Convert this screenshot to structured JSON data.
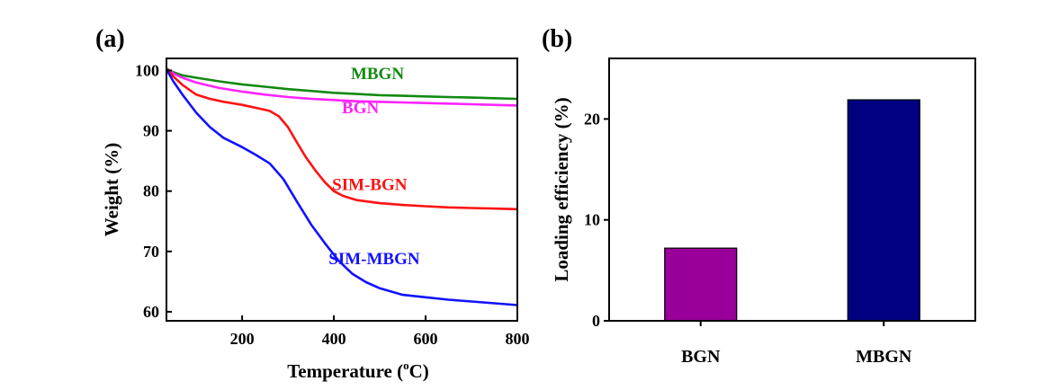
{
  "chart_data": [
    {
      "type": "line",
      "panel_label": "(a)",
      "title": "",
      "xlabel": "Temperature (",
      "xlabel_sup": "o",
      "xlabel_tail": "C)",
      "ylabel": "Weight (%)",
      "xlim": [
        35,
        800
      ],
      "ylim": [
        58.5,
        102
      ],
      "xticks": [
        200,
        400,
        600,
        800
      ],
      "yticks": [
        60,
        70,
        80,
        90,
        100
      ],
      "grid": false,
      "series": [
        {
          "name": "MBGN",
          "color": "#118a11",
          "label_at": [
            495,
            98.6
          ],
          "x": [
            35,
            50,
            70,
            100,
            150,
            200,
            250,
            300,
            350,
            400,
            450,
            500,
            550,
            600,
            650,
            700,
            750,
            800
          ],
          "y": [
            100.3,
            99.7,
            99.2,
            98.8,
            98.2,
            97.7,
            97.3,
            96.9,
            96.6,
            96.3,
            96.1,
            95.9,
            95.8,
            95.7,
            95.6,
            95.5,
            95.4,
            95.3
          ]
        },
        {
          "name": "BGN",
          "color": "#ff22ff",
          "label_at": [
            458,
            92.9
          ],
          "x": [
            35,
            50,
            70,
            100,
            150,
            200,
            250,
            300,
            350,
            400,
            450,
            500,
            550,
            600,
            650,
            700,
            750,
            800
          ],
          "y": [
            100.3,
            99.5,
            98.8,
            98.0,
            97.1,
            96.5,
            96.0,
            95.6,
            95.3,
            95.1,
            94.9,
            94.8,
            94.7,
            94.6,
            94.5,
            94.4,
            94.3,
            94.2
          ]
        },
        {
          "name": "SIM-BGN",
          "color": "#ff1111",
          "label_at": [
            478,
            80.2
          ],
          "x": [
            35,
            50,
            70,
            100,
            130,
            160,
            200,
            230,
            260,
            280,
            300,
            320,
            340,
            360,
            380,
            400,
            420,
            450,
            500,
            550,
            600,
            650,
            700,
            750,
            800
          ],
          "y": [
            100.3,
            99.0,
            97.6,
            96.0,
            95.3,
            94.8,
            94.3,
            93.8,
            93.3,
            92.4,
            90.6,
            88.0,
            85.5,
            83.4,
            81.5,
            80.0,
            79.2,
            78.5,
            78.0,
            77.7,
            77.5,
            77.3,
            77.2,
            77.1,
            77.0
          ]
        },
        {
          "name": "SIM-MBGN",
          "color": "#1111ff",
          "label_at": [
            488,
            67.9
          ],
          "x": [
            35,
            50,
            70,
            100,
            130,
            160,
            200,
            230,
            260,
            290,
            320,
            350,
            380,
            410,
            440,
            470,
            500,
            550,
            600,
            650,
            700,
            750,
            800
          ],
          "y": [
            100.2,
            98.2,
            96.0,
            93.0,
            90.6,
            88.8,
            87.3,
            86.0,
            84.6,
            82.0,
            78.2,
            74.5,
            71.4,
            68.5,
            66.3,
            64.9,
            63.9,
            62.8,
            62.4,
            62.0,
            61.7,
            61.4,
            61.1
          ]
        }
      ]
    },
    {
      "type": "bar",
      "panel_label": "(b)",
      "title": "",
      "xlabel": "",
      "ylabel": "Loading efficiency (%)",
      "ylim": [
        0,
        26
      ],
      "yticks": [
        0,
        10,
        20
      ],
      "grid": false,
      "categories": [
        "BGN",
        "MBGN"
      ],
      "values": [
        7.2,
        21.9
      ],
      "colors": [
        "#990099",
        "#000080"
      ]
    }
  ]
}
